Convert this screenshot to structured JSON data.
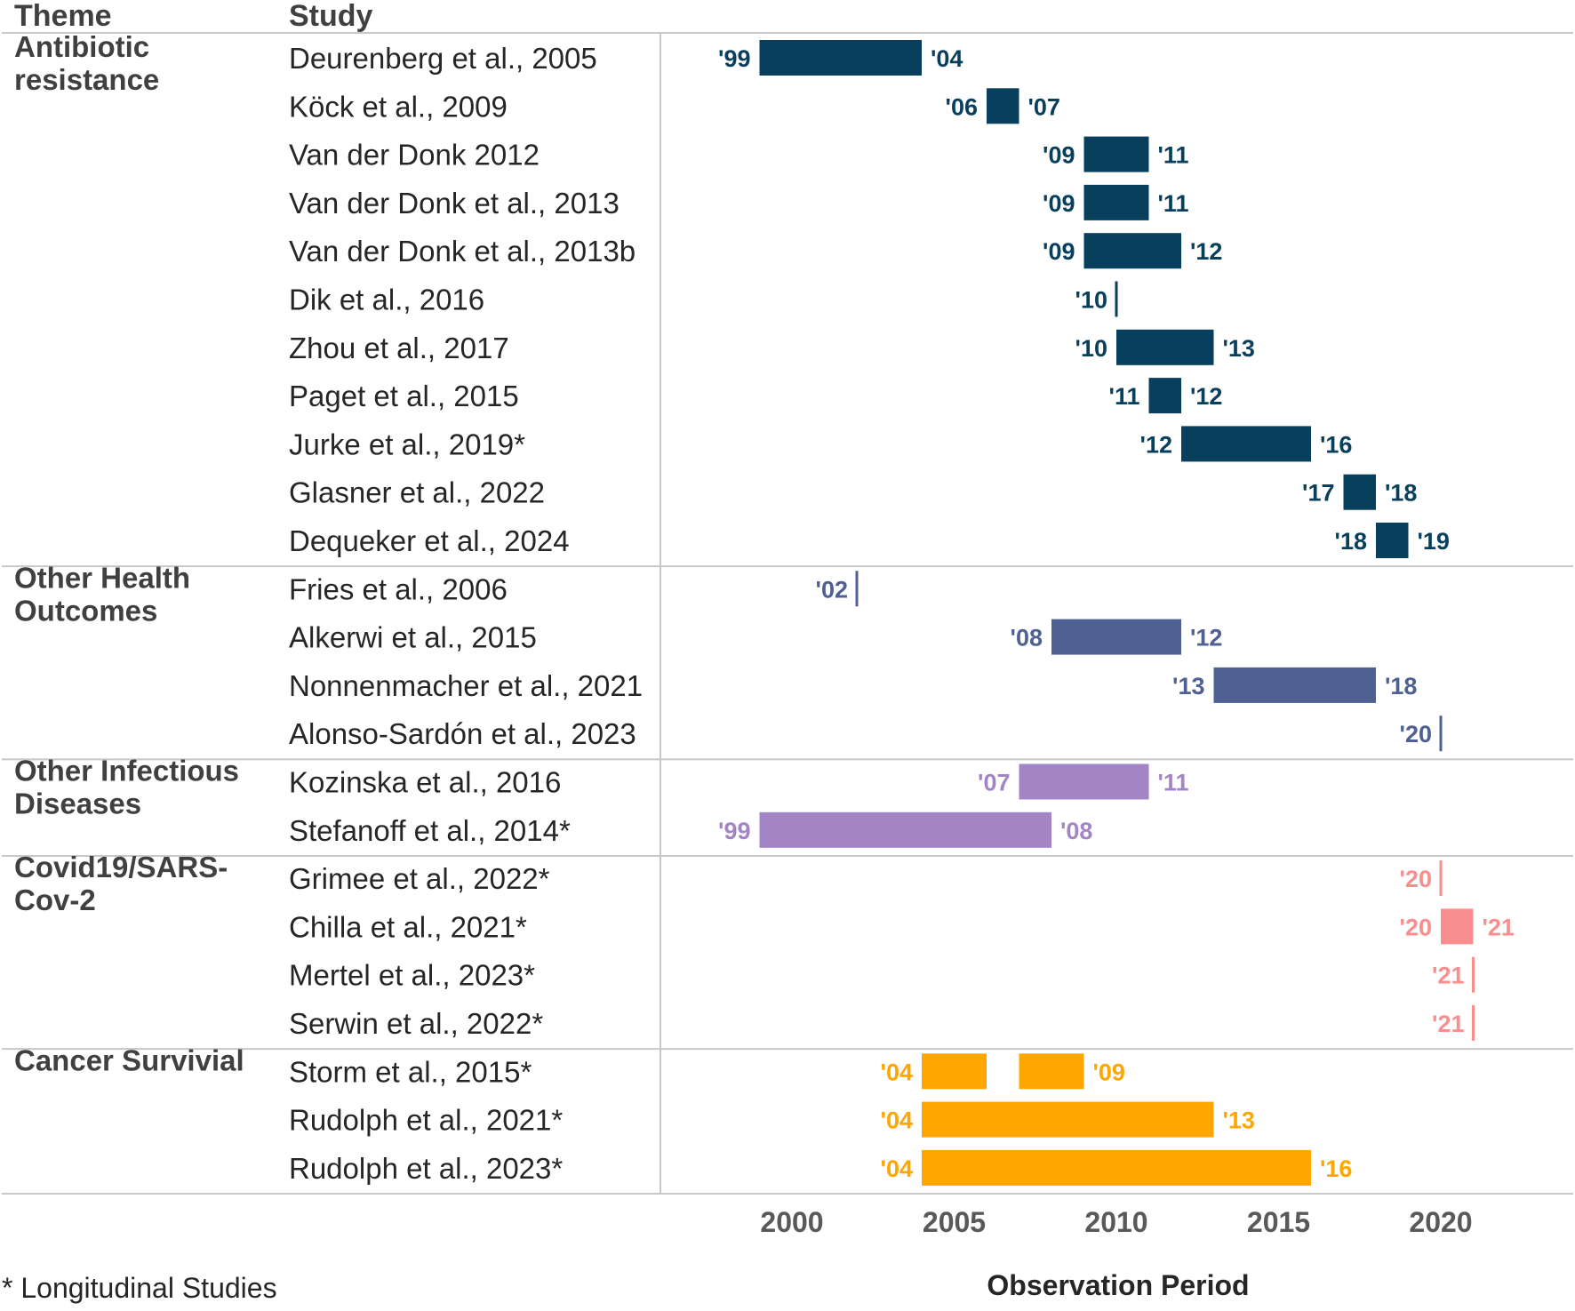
{
  "chart_data": {
    "type": "gantt",
    "xlabel": "Observation Period",
    "xlim": [
      1997,
      2024
    ],
    "xticks": [
      2000,
      2005,
      2010,
      2015,
      2020
    ],
    "headers": {
      "theme": "Theme",
      "study": "Study"
    },
    "footnote": "* Longitudinal Studies",
    "themes": [
      {
        "name": "Antibiotic resistance",
        "lines": [
          "Antibiotic",
          "resistance"
        ],
        "color": "#073f5c",
        "studies": [
          {
            "study": "Deurenberg et al., 2005",
            "start": 1999,
            "end": 2004,
            "start_label": "'99",
            "end_label": "'04"
          },
          {
            "study": "Köck et al., 2009",
            "start": 2006,
            "end": 2007,
            "start_label": "'06",
            "end_label": "'07"
          },
          {
            "study": "Van der Donk 2012",
            "start": 2009,
            "end": 2011,
            "start_label": "'09",
            "end_label": "'11"
          },
          {
            "study": "Van der Donk et al., 2013",
            "start": 2009,
            "end": 2011,
            "start_label": "'09",
            "end_label": "'11"
          },
          {
            "study": "Van der Donk et al., 2013b",
            "start": 2009,
            "end": 2012,
            "start_label": "'09",
            "end_label": "'12"
          },
          {
            "study": "Dik et al., 2016",
            "start": 2010,
            "end": 2010,
            "start_label": "'10"
          },
          {
            "study": "Zhou et al., 2017",
            "start": 2010,
            "end": 2013,
            "start_label": "'10",
            "end_label": "'13"
          },
          {
            "study": "Paget et al., 2015",
            "start": 2011,
            "end": 2012,
            "start_label": "'11",
            "end_label": "'12"
          },
          {
            "study": "Jurke et al., 2019*",
            "start": 2012,
            "end": 2016,
            "start_label": "'12",
            "end_label": "'16"
          },
          {
            "study": "Glasner et al., 2022",
            "start": 2017,
            "end": 2018,
            "start_label": "'17",
            "end_label": "'18"
          },
          {
            "study": "Dequeker et al., 2024",
            "start": 2018,
            "end": 2019,
            "start_label": "'18",
            "end_label": "'19"
          }
        ]
      },
      {
        "name": "Other Health Outcomes",
        "lines": [
          "Other Health",
          "Outcomes"
        ],
        "color": "#4f6092",
        "studies": [
          {
            "study": "Fries et al., 2006",
            "start": 2002,
            "end": 2002,
            "start_label": "'02"
          },
          {
            "study": "Alkerwi et al., 2015",
            "start": 2008,
            "end": 2012,
            "start_label": "'08",
            "end_label": "'12"
          },
          {
            "study": "Nonnenmacher et al., 2021",
            "start": 2013,
            "end": 2018,
            "start_label": "'13",
            "end_label": "'18"
          },
          {
            "study": "Alonso-Sardón et al., 2023",
            "start": 2020,
            "end": 2020,
            "start_label": "'20"
          }
        ]
      },
      {
        "name": "Other Infectious Diseases",
        "lines": [
          "Other Infectious",
          "Diseases"
        ],
        "color": "#a385c6",
        "studies": [
          {
            "study": "Kozinska et al., 2016",
            "start": 2007,
            "end": 2011,
            "start_label": "'07",
            "end_label": "'11"
          },
          {
            "study": "Stefanoff et al., 2014*",
            "start": 1999,
            "end": 2008,
            "start_label": "'99",
            "end_label": "'08"
          }
        ]
      },
      {
        "name": "Covid19/SARS-Cov-2",
        "lines": [
          "Covid19/SARS-",
          "Cov-2"
        ],
        "color": "#f88e8e",
        "studies": [
          {
            "study": "Grimee et al., 2022*",
            "start": 2020,
            "end": 2020,
            "start_label": "'20"
          },
          {
            "study": "Chilla et al., 2021*",
            "start": 2020,
            "end": 2021,
            "start_label": "'20",
            "end_label": "'21"
          },
          {
            "study": "Mertel et al., 2023*",
            "start": 2021,
            "end": 2021,
            "start_label": "'21"
          },
          {
            "study": "Serwin et al., 2022*",
            "start": 2021,
            "end": 2021,
            "start_label": "'21"
          }
        ]
      },
      {
        "name": "Cancer Survivial",
        "lines": [
          "Cancer Survivial"
        ],
        "color": "#ffa600",
        "studies": [
          {
            "study": "Storm et al., 2015*",
            "segments": [
              [
                2004,
                2006
              ],
              [
                2007,
                2009
              ]
            ],
            "start": 2004,
            "end": 2009,
            "start_label": "'04",
            "end_label": "'09"
          },
          {
            "study": "Rudolph et al., 2021*",
            "start": 2004,
            "end": 2013,
            "start_label": "'04",
            "end_label": "'13"
          },
          {
            "study": "Rudolph et al., 2023*",
            "start": 2004,
            "end": 2016,
            "start_label": "'04",
            "end_label": "'16"
          }
        ]
      }
    ]
  }
}
